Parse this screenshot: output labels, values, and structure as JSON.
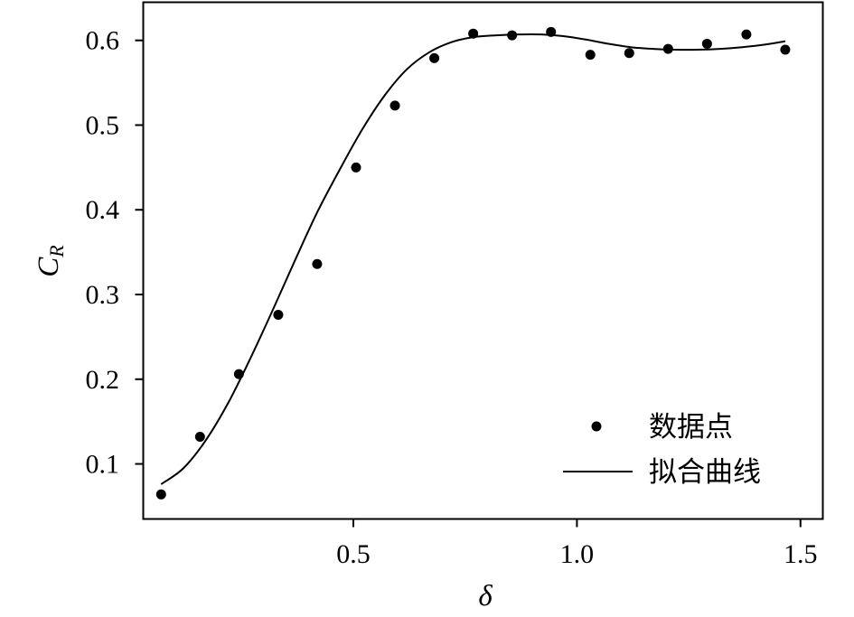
{
  "chart_data": {
    "type": "scatter",
    "xlabel": "δ",
    "ylabel_main": "C",
    "ylabel_sub": "R",
    "xlim": [
      0.03,
      1.55
    ],
    "ylim": [
      0.035,
      0.645
    ],
    "xticks": [
      0.5,
      1.0,
      1.5
    ],
    "xtick_labels": [
      "0.5",
      "1.0",
      "1.5"
    ],
    "yticks": [
      0.1,
      0.2,
      0.3,
      0.4,
      0.5,
      0.6
    ],
    "ytick_labels": [
      "0.1",
      "0.2",
      "0.3",
      "0.4",
      "0.5",
      "0.6"
    ],
    "grid": false,
    "legend_position": "bottom-right",
    "series": [
      {
        "name": "数据点",
        "kind": "points",
        "color": "#000000",
        "x": [
          0.07,
          0.157,
          0.244,
          0.332,
          0.419,
          0.506,
          0.593,
          0.681,
          0.768,
          0.855,
          0.942,
          1.03,
          1.117,
          1.204,
          1.291,
          1.379,
          1.466
        ],
        "y": [
          0.064,
          0.132,
          0.206,
          0.276,
          0.336,
          0.45,
          0.523,
          0.579,
          0.608,
          0.606,
          0.61,
          0.583,
          0.585,
          0.59,
          0.596,
          0.607,
          0.589
        ]
      },
      {
        "name": "拟合曲线",
        "kind": "line",
        "color": "#000000",
        "x": [
          0.07,
          0.12,
          0.17,
          0.22,
          0.27,
          0.32,
          0.37,
          0.42,
          0.47,
          0.52,
          0.57,
          0.62,
          0.67,
          0.72,
          0.77,
          0.82,
          0.87,
          0.92,
          0.97,
          1.02,
          1.07,
          1.12,
          1.17,
          1.22,
          1.27,
          1.32,
          1.37,
          1.42,
          1.466
        ],
        "y": [
          0.076,
          0.095,
          0.128,
          0.172,
          0.225,
          0.282,
          0.341,
          0.398,
          0.448,
          0.495,
          0.535,
          0.566,
          0.586,
          0.598,
          0.604,
          0.606,
          0.607,
          0.607,
          0.605,
          0.601,
          0.596,
          0.592,
          0.59,
          0.589,
          0.589,
          0.59,
          0.592,
          0.595,
          0.599
        ]
      }
    ]
  }
}
